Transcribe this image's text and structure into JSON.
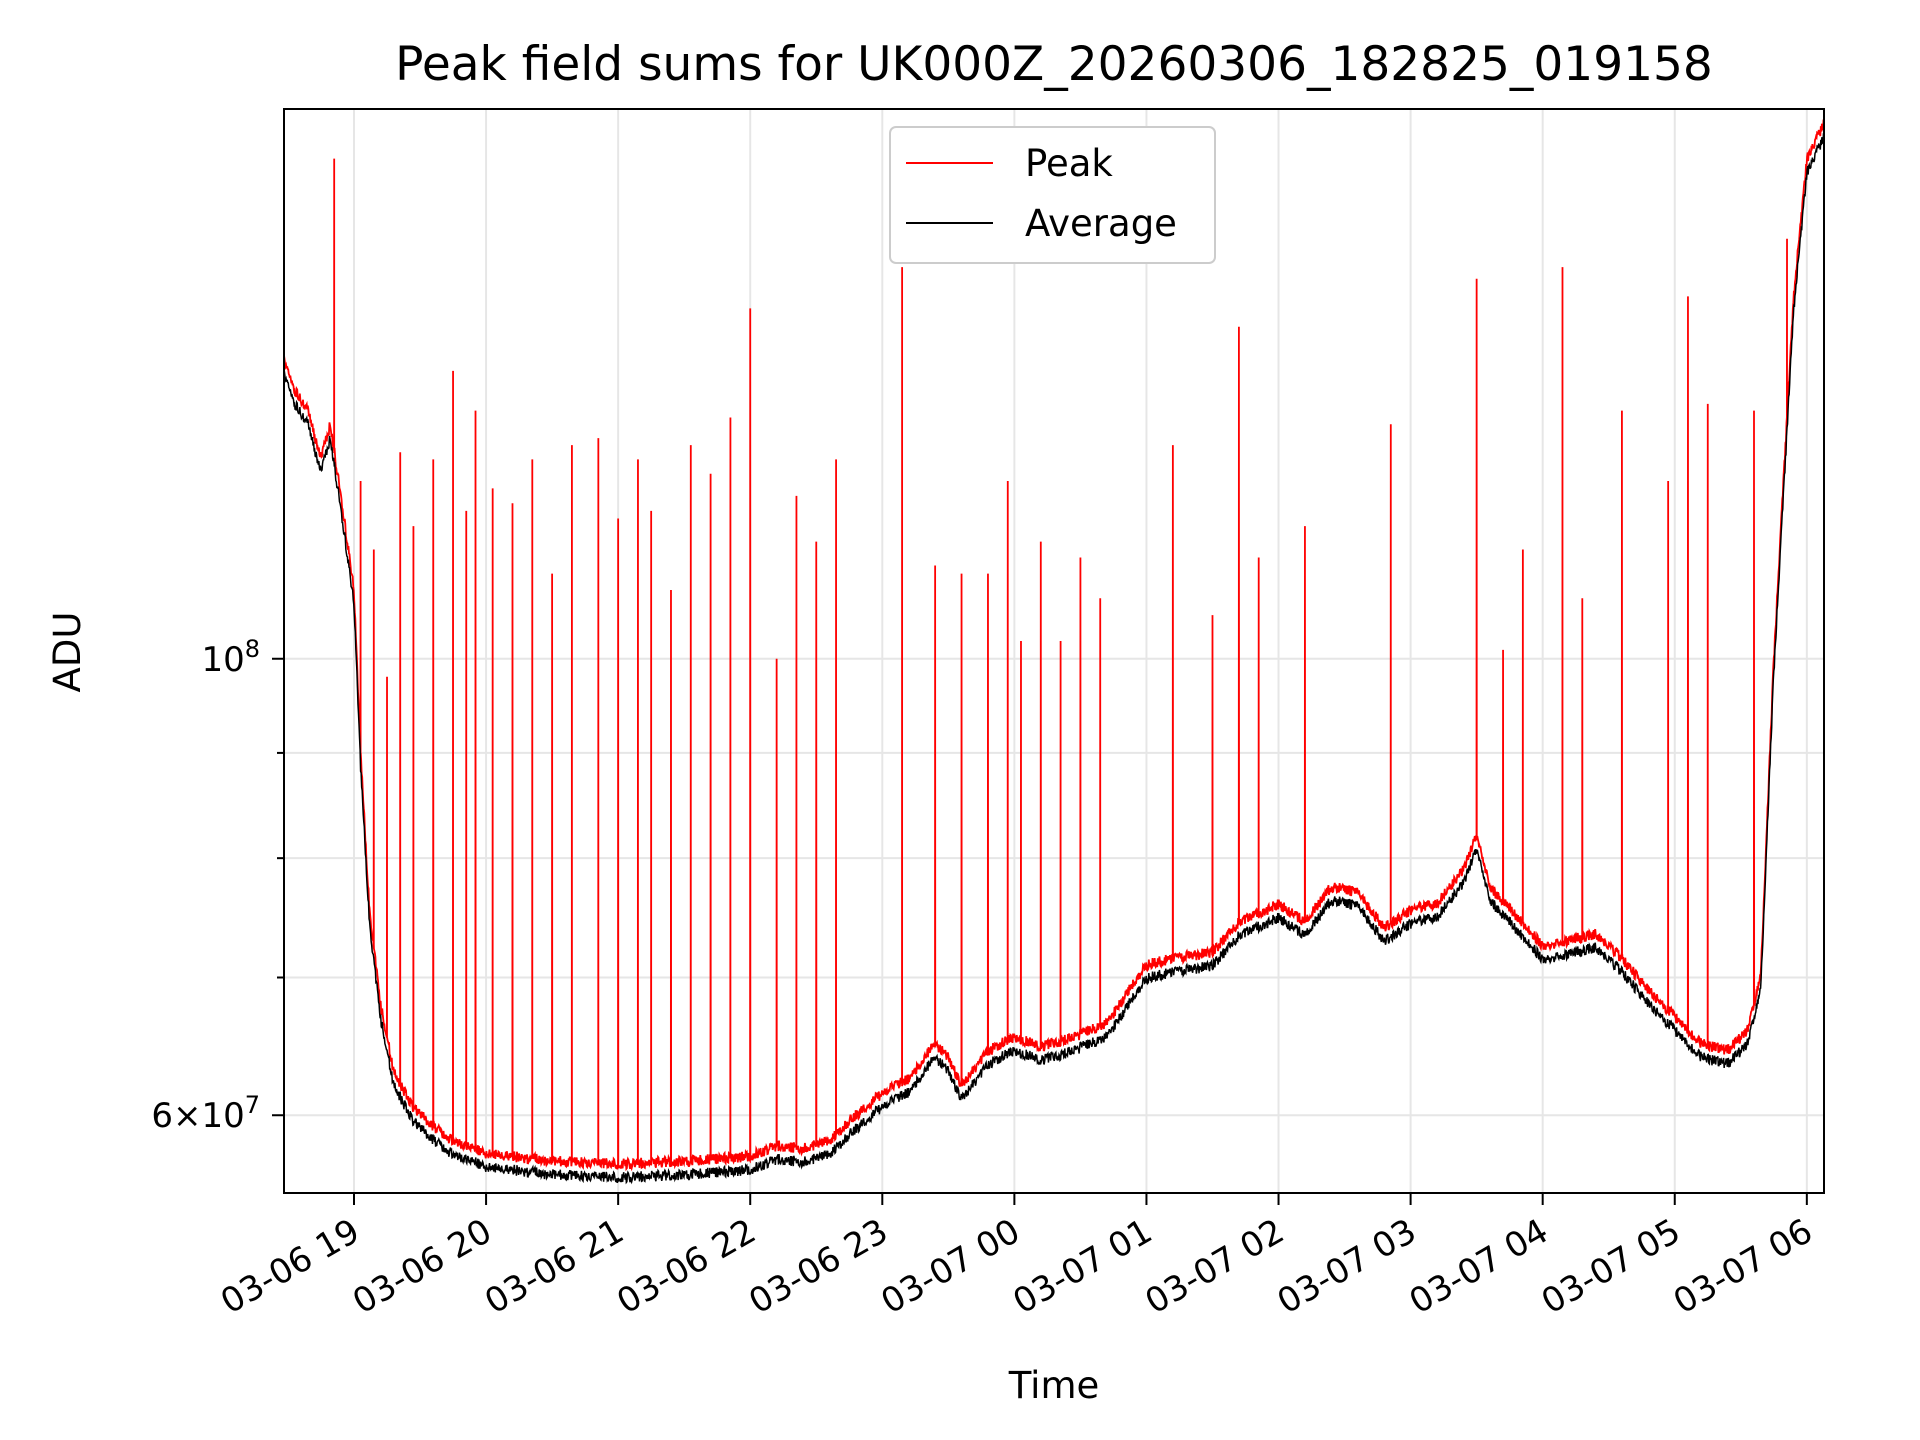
{
  "chart_data": {
    "type": "line",
    "title": "Peak field sums for UK000Z_20260306_182825_019158",
    "xlabel": "Time",
    "ylabel": "ADU",
    "yscale": "log",
    "ylim": [
      55000000,
      185000000
    ],
    "xlim_hours": [
      18.47,
      30.13
    ],
    "grid": true,
    "legend_position": "upper center",
    "x_ticks": [
      {
        "label": "03-06 19",
        "hour": 19
      },
      {
        "label": "03-06 20",
        "hour": 20
      },
      {
        "label": "03-06 21",
        "hour": 21
      },
      {
        "label": "03-06 22",
        "hour": 22
      },
      {
        "label": "03-06 23",
        "hour": 23
      },
      {
        "label": "03-07 00",
        "hour": 24
      },
      {
        "label": "03-07 01",
        "hour": 25
      },
      {
        "label": "03-07 02",
        "hour": 26
      },
      {
        "label": "03-07 03",
        "hour": 27
      },
      {
        "label": "03-07 04",
        "hour": 28
      },
      {
        "label": "03-07 05",
        "hour": 29
      },
      {
        "label": "03-07 06",
        "hour": 30
      }
    ],
    "y_ticks": [
      {
        "value": 60000000,
        "base": "6",
        "mult": "×10",
        "exp": "7"
      },
      {
        "value": 100000000,
        "base": "",
        "mult": "10",
        "exp": "8"
      }
    ],
    "y_minor_ticks": [
      70000000,
      80000000,
      90000000,
      200000000
    ],
    "series": [
      {
        "name": "Peak",
        "color": "#ff0000",
        "baseline_points": [
          [
            18.47,
            140000000
          ],
          [
            18.55,
            135000000
          ],
          [
            18.65,
            132000000
          ],
          [
            18.75,
            125000000
          ],
          [
            18.82,
            130000000
          ],
          [
            18.9,
            120000000
          ],
          [
            19.0,
            108000000
          ],
          [
            19.05,
            90000000
          ],
          [
            19.12,
            75000000
          ],
          [
            19.2,
            68000000
          ],
          [
            19.3,
            63000000
          ],
          [
            19.45,
            60500000
          ],
          [
            19.7,
            58500000
          ],
          [
            20.0,
            57500000
          ],
          [
            20.5,
            57000000
          ],
          [
            21.0,
            56800000
          ],
          [
            21.5,
            57000000
          ],
          [
            22.0,
            57300000
          ],
          [
            22.2,
            58000000
          ],
          [
            22.4,
            57800000
          ],
          [
            22.6,
            58300000
          ],
          [
            22.8,
            60000000
          ],
          [
            23.0,
            61500000
          ],
          [
            23.2,
            62500000
          ],
          [
            23.4,
            65000000
          ],
          [
            23.5,
            64000000
          ],
          [
            23.6,
            62000000
          ],
          [
            23.8,
            64500000
          ],
          [
            24.0,
            65500000
          ],
          [
            24.2,
            64800000
          ],
          [
            24.4,
            65300000
          ],
          [
            24.7,
            66500000
          ],
          [
            25.0,
            71000000
          ],
          [
            25.2,
            71500000
          ],
          [
            25.5,
            72000000
          ],
          [
            25.7,
            74500000
          ],
          [
            26.0,
            76000000
          ],
          [
            26.2,
            74500000
          ],
          [
            26.4,
            77500000
          ],
          [
            26.6,
            77000000
          ],
          [
            26.8,
            74000000
          ],
          [
            27.0,
            75500000
          ],
          [
            27.2,
            76000000
          ],
          [
            27.4,
            79000000
          ],
          [
            27.5,
            82000000
          ],
          [
            27.6,
            77500000
          ],
          [
            27.8,
            75000000
          ],
          [
            28.0,
            72500000
          ],
          [
            28.2,
            73000000
          ],
          [
            28.4,
            73500000
          ],
          [
            28.6,
            71500000
          ],
          [
            28.8,
            69000000
          ],
          [
            29.0,
            67000000
          ],
          [
            29.2,
            65000000
          ],
          [
            29.4,
            64500000
          ],
          [
            29.55,
            66000000
          ],
          [
            29.65,
            70000000
          ],
          [
            29.75,
            100000000
          ],
          [
            29.9,
            150000000
          ],
          [
            30.0,
            175000000
          ],
          [
            30.13,
            182000000
          ]
        ],
        "spikes": [
          [
            18.85,
            175000000
          ],
          [
            19.05,
            122000000
          ],
          [
            19.15,
            113000000
          ],
          [
            19.25,
            98000000
          ],
          [
            19.35,
            126000000
          ],
          [
            19.45,
            116000000
          ],
          [
            19.6,
            125000000
          ],
          [
            19.75,
            138000000
          ],
          [
            19.85,
            118000000
          ],
          [
            19.92,
            132000000
          ],
          [
            20.05,
            121000000
          ],
          [
            20.2,
            119000000
          ],
          [
            20.35,
            125000000
          ],
          [
            20.5,
            110000000
          ],
          [
            20.65,
            127000000
          ],
          [
            20.85,
            128000000
          ],
          [
            21.0,
            117000000
          ],
          [
            21.15,
            125000000
          ],
          [
            21.25,
            118000000
          ],
          [
            21.4,
            108000000
          ],
          [
            21.55,
            127000000
          ],
          [
            21.7,
            123000000
          ],
          [
            21.85,
            131000000
          ],
          [
            22.0,
            148000000
          ],
          [
            22.2,
            100000000
          ],
          [
            22.35,
            120000000
          ],
          [
            22.5,
            114000000
          ],
          [
            22.65,
            125000000
          ],
          [
            23.15,
            155000000
          ],
          [
            23.4,
            111000000
          ],
          [
            23.6,
            110000000
          ],
          [
            23.8,
            110000000
          ],
          [
            23.95,
            122000000
          ],
          [
            24.05,
            102000000
          ],
          [
            24.2,
            114000000
          ],
          [
            24.35,
            102000000
          ],
          [
            24.5,
            112000000
          ],
          [
            24.65,
            107000000
          ],
          [
            25.2,
            127000000
          ],
          [
            25.5,
            105000000
          ],
          [
            25.7,
            145000000
          ],
          [
            25.85,
            112000000
          ],
          [
            26.2,
            116000000
          ],
          [
            26.85,
            130000000
          ],
          [
            27.5,
            153000000
          ],
          [
            27.7,
            101000000
          ],
          [
            27.85,
            113000000
          ],
          [
            28.15,
            155000000
          ],
          [
            28.3,
            107000000
          ],
          [
            28.6,
            132000000
          ],
          [
            28.95,
            122000000
          ],
          [
            29.1,
            150000000
          ],
          [
            29.25,
            133000000
          ],
          [
            29.6,
            132000000
          ],
          [
            29.85,
            160000000
          ]
        ]
      },
      {
        "name": "Average",
        "color": "#000000",
        "offset_ratio": 0.985
      }
    ]
  }
}
